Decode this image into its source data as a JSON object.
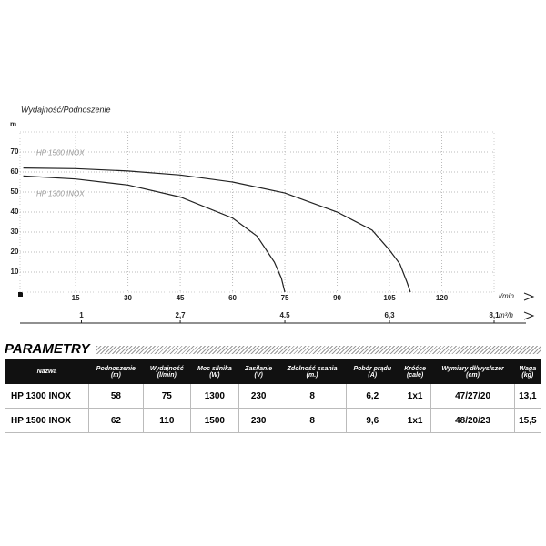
{
  "chart_data": {
    "type": "line",
    "title": "Wydajność/Podnoszenie",
    "y_label": "m",
    "x_label": "l/min",
    "x2_label": "m³/h",
    "xlim": [
      0,
      135
    ],
    "xticks": [
      15,
      30,
      45,
      60,
      75,
      90,
      105,
      120
    ],
    "x2lim": [
      0,
      8.1
    ],
    "x2ticks": [
      1,
      {
        "value": 2.7,
        "label": "2,7"
      },
      4.5,
      {
        "value": 6.3,
        "label": "6,3"
      },
      {
        "value": 8.1,
        "label": "8,1"
      }
    ],
    "ylim": [
      0,
      80
    ],
    "yticks": [
      10,
      20,
      30,
      40,
      50,
      60,
      70
    ],
    "grid": true,
    "series": [
      {
        "name": "HP 1500 INOX",
        "color": "#222222",
        "x": [
          0,
          15,
          30,
          45,
          60,
          75,
          90,
          100,
          105,
          108,
          110,
          111
        ],
        "values": [
          62,
          61.7,
          60.5,
          58.5,
          55,
          49.5,
          40,
          31,
          21,
          14,
          5,
          0
        ]
      },
      {
        "name": "HP 1300 INOX",
        "color": "#222222",
        "x": [
          0,
          15,
          30,
          45,
          60,
          67,
          72,
          74,
          75
        ],
        "values": [
          58,
          56.5,
          53.5,
          47.5,
          37,
          28,
          15,
          7,
          0
        ]
      }
    ]
  },
  "table": {
    "title": "PARAMETRY",
    "headers": [
      "Nazwa",
      "Podnoszenie\n(m)",
      "Wydajność\n(l/min)",
      "Moc silnika\n(W)",
      "Zasilanie\n(V)",
      "Zdolność ssania\n(m.)",
      "Pobór prądu\n(A)",
      "Króćce\n(cale)",
      "Wymiary dł/wys/szer\n(cm)",
      "Waga\n(kg)"
    ],
    "rows": [
      [
        "HP 1300 INOX",
        "58",
        "75",
        "1300",
        "230",
        "8",
        "6,2",
        "1x1",
        "47/27/20",
        "13,1"
      ],
      [
        "HP 1500 INOX",
        "62",
        "110",
        "1500",
        "230",
        "8",
        "9,6",
        "1x1",
        "48/20/23",
        "15,5"
      ]
    ]
  }
}
